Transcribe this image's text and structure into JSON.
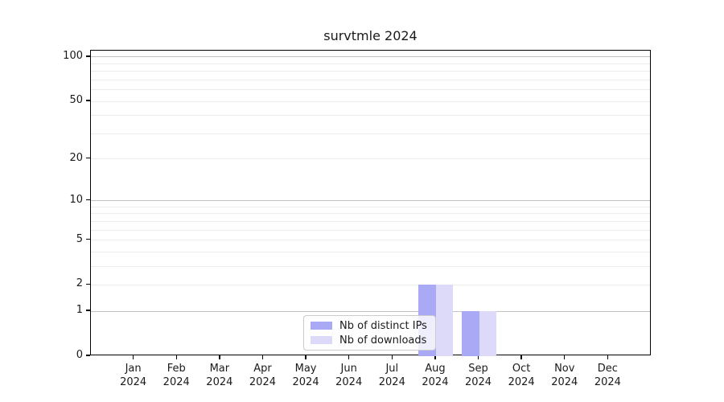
{
  "chart_data": {
    "type": "bar",
    "title": "survtmle 2024",
    "xlabel": "",
    "ylabel": "",
    "yscale": "log1p",
    "ylim": [
      0,
      110.5
    ],
    "yticks": [
      0,
      1,
      2,
      5,
      10,
      20,
      50,
      100
    ],
    "x_tick_labels": [
      {
        "line1": "Jan",
        "line2": "2024"
      },
      {
        "line1": "Feb",
        "line2": "2024"
      },
      {
        "line1": "Mar",
        "line2": "2024"
      },
      {
        "line1": "Apr",
        "line2": "2024"
      },
      {
        "line1": "May",
        "line2": "2024"
      },
      {
        "line1": "Jun",
        "line2": "2024"
      },
      {
        "line1": "Jul",
        "line2": "2024"
      },
      {
        "line1": "Aug",
        "line2": "2024"
      },
      {
        "line1": "Sep",
        "line2": "2024"
      },
      {
        "line1": "Oct",
        "line2": "2024"
      },
      {
        "line1": "Nov",
        "line2": "2024"
      },
      {
        "line1": "Dec",
        "line2": "2024"
      }
    ],
    "series": [
      {
        "name": "Nb of distinct IPs",
        "color": "#aaa9f6",
        "values": [
          0,
          0,
          0,
          0,
          0,
          0,
          0,
          2,
          1,
          0,
          0,
          0
        ]
      },
      {
        "name": "Nb of downloads",
        "color": "#dcdaf8",
        "values": [
          0,
          0,
          0,
          0,
          0,
          0,
          0,
          2,
          1,
          0,
          0,
          0
        ]
      }
    ],
    "grid": {
      "major_values": [
        1,
        10,
        100
      ],
      "minor_values": [
        2,
        3,
        4,
        5,
        6,
        7,
        8,
        9,
        20,
        30,
        40,
        50,
        60,
        70,
        80,
        90
      ],
      "major_color": "#c2c2c2",
      "minor_color": "#ececec"
    },
    "legend": {
      "position": "lower center",
      "entries": [
        "Nb of distinct IPs",
        "Nb of downloads"
      ]
    }
  },
  "colors": {
    "background": "#ffffff",
    "spine": "#000000",
    "text": "#1a1a1a"
  }
}
